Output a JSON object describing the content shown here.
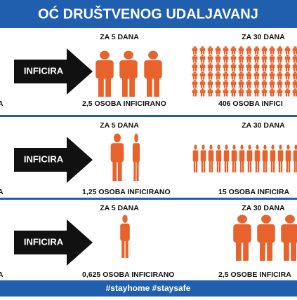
{
  "header": {
    "title": "OĆ DRUŠTVENOG UDALJAVANJ"
  },
  "rows": [
    {
      "left": "A",
      "arrow": "INFICIRA",
      "mid_head": "ZA 5 DANA",
      "mid_label": "2,5 OSOBA INFICIRANO",
      "right_head": "ZA 30 DANA",
      "right_label": "406 OSOBA INFICI"
    },
    {
      "left": "A",
      "arrow": "INFICIRA",
      "mid_head": "ZA 5 DANA",
      "mid_label": "1,25 OSOBA INFICIRANO",
      "right_head": "ZA 30 DANA",
      "right_label": "15 OSOBA INFICIRA"
    },
    {
      "left": "A",
      "arrow": "INFICIRA",
      "mid_head": "ZA 5 DANA",
      "mid_label": "0,625 OSOBA INFICIRANO",
      "right_head": "ZA 30 DANA",
      "right_label": "2,5 OSOBE INFICIRA"
    }
  ],
  "footer": {
    "text": "#stayhome #staysafe"
  }
}
